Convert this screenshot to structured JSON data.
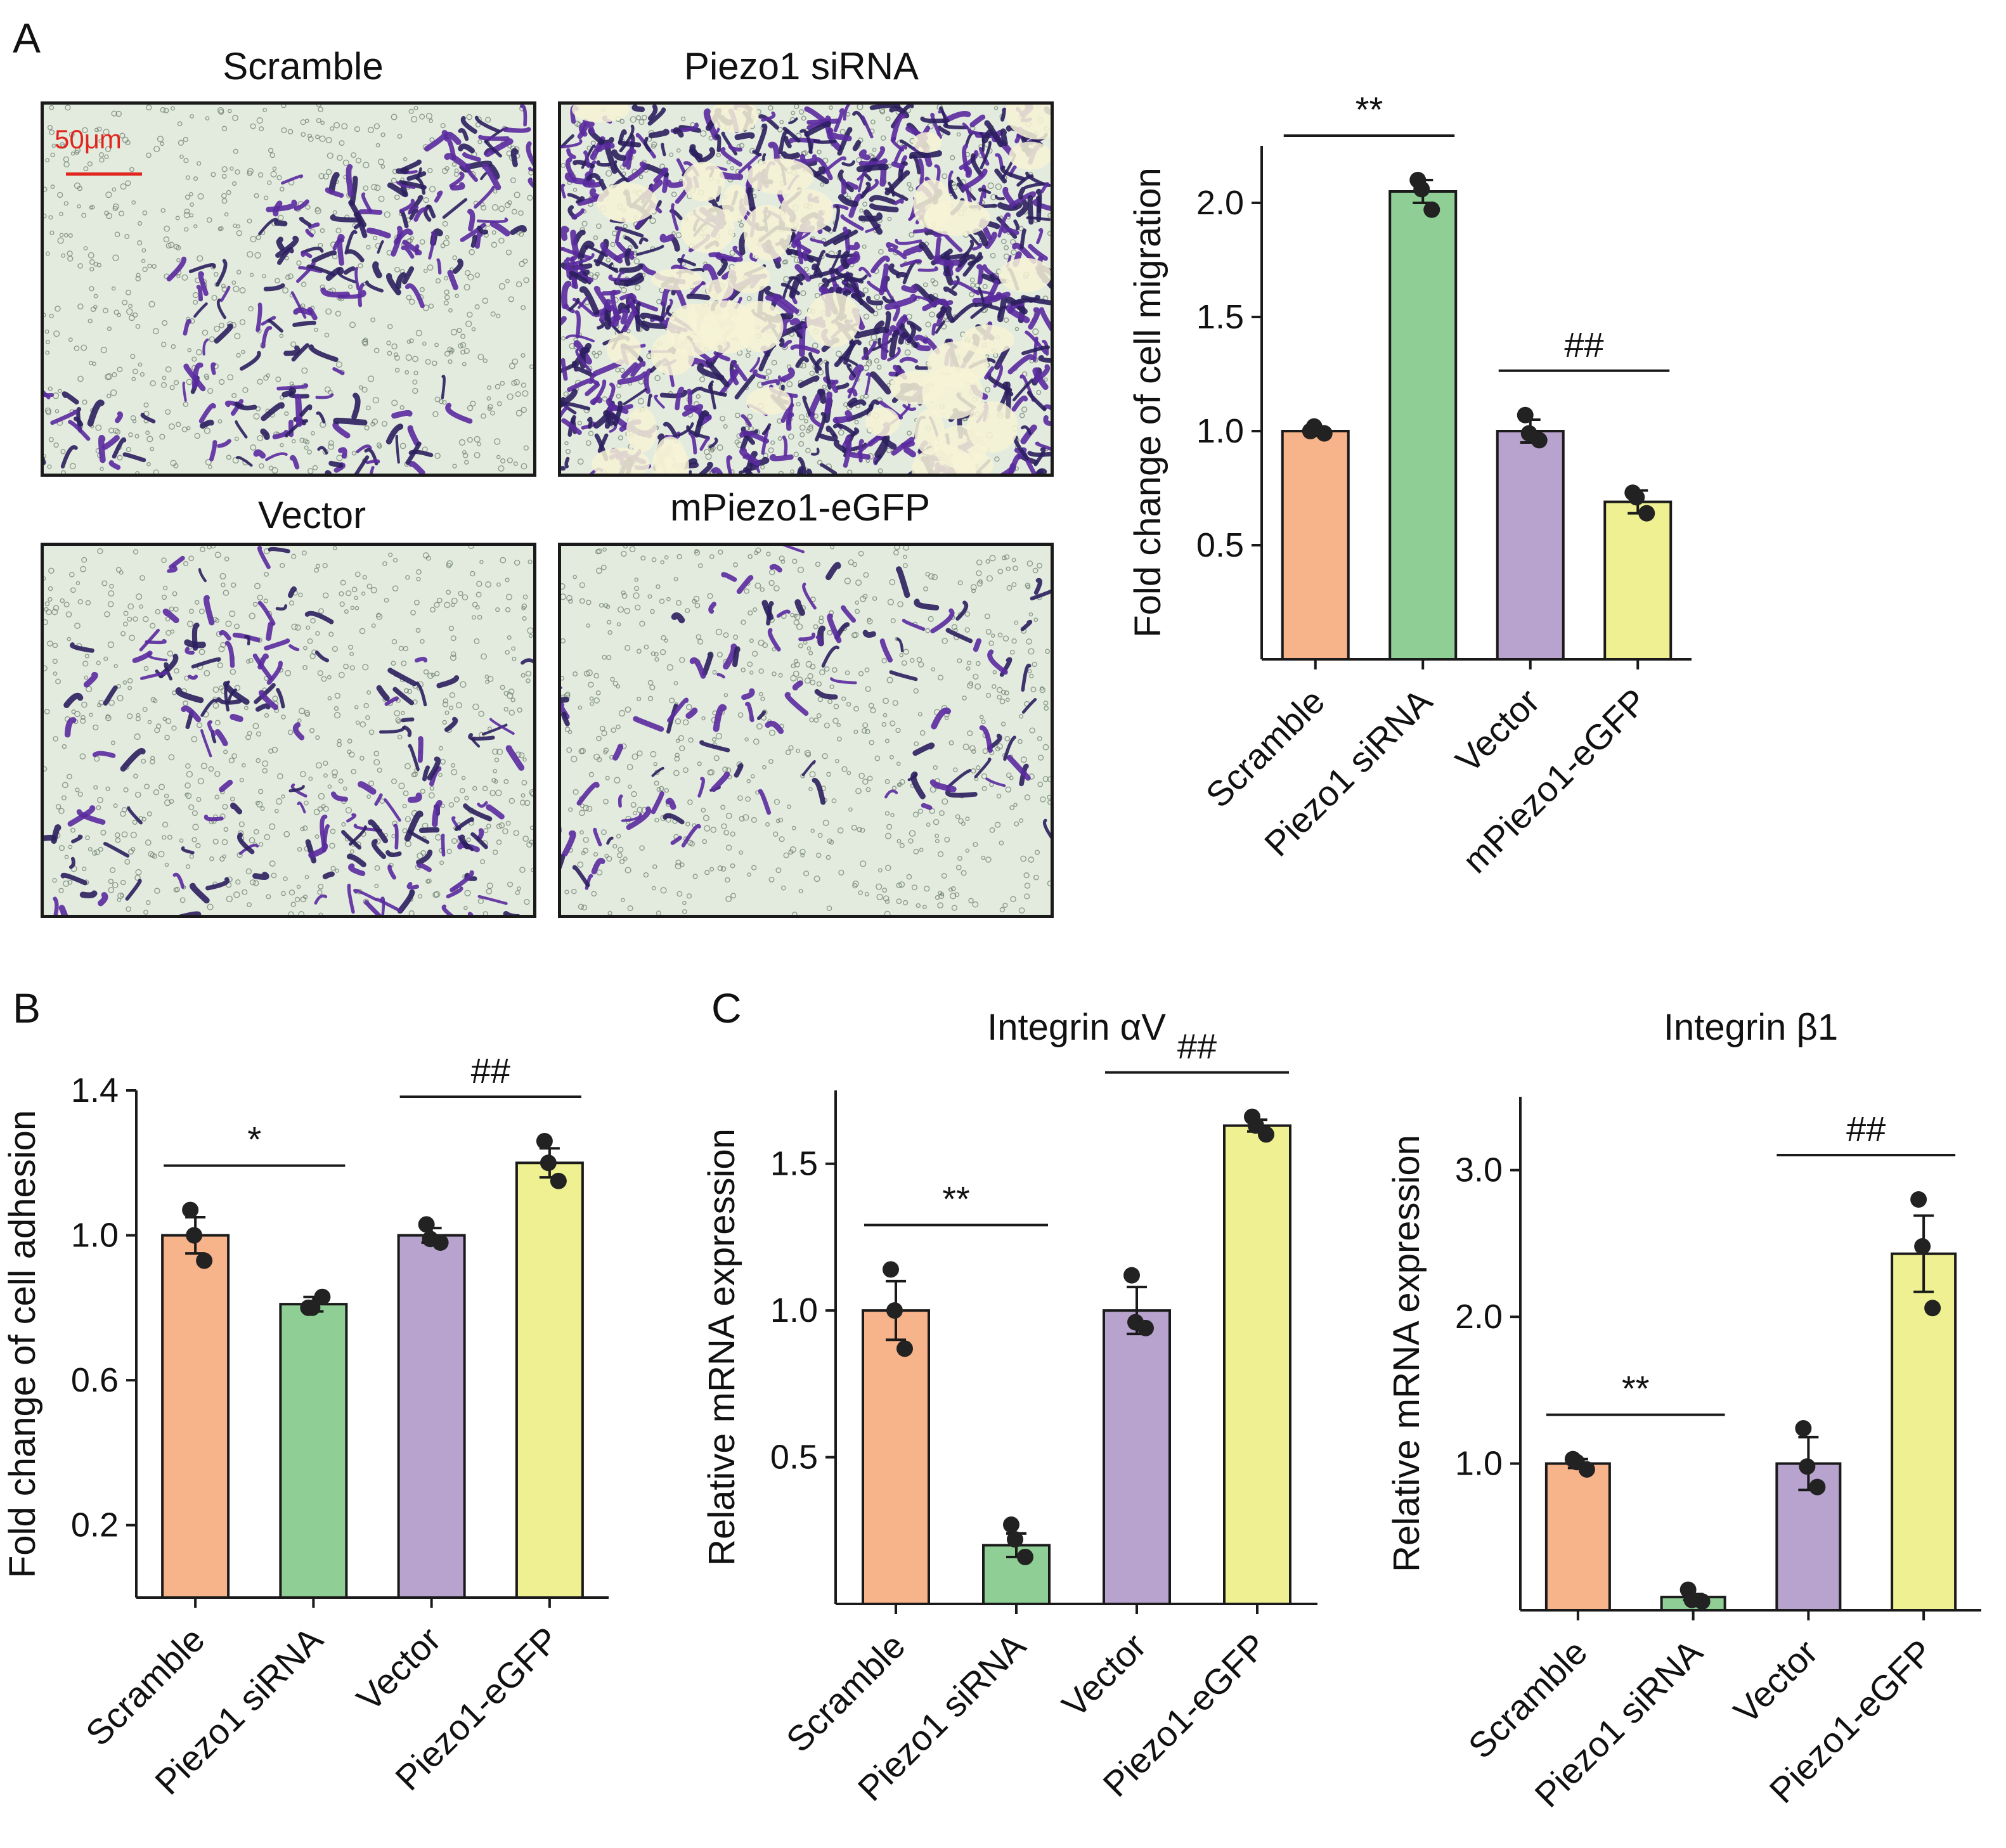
{
  "panels": {
    "a": {
      "letter": "A"
    },
    "b": {
      "letter": "B"
    },
    "c": {
      "letter": "C"
    }
  },
  "micrographs": [
    {
      "title": "Scramble",
      "density": "medium"
    },
    {
      "title": "Piezo1 siRNA",
      "density": "high"
    },
    {
      "title": "Vector",
      "density": "medium-low"
    },
    {
      "title": "mPiezo1-eGFP",
      "density": "low"
    }
  ],
  "scale_bar_label": "50μm",
  "colors": {
    "scramble": "#f7b38a",
    "sirna": "#8fcf95",
    "vector": "#b7a3cd",
    "overexpression": "#eff092",
    "stain": "#5a2a9e",
    "scale": "#e0261f",
    "axis": "#1a1a1a"
  },
  "chart_data": [
    {
      "id": "migration",
      "type": "bar",
      "title": "",
      "xlabel": "",
      "ylabel": "Fold change of cell migration",
      "ylim": [
        0,
        2.25
      ],
      "yticks": [
        0.5,
        1.0,
        1.5,
        2.0
      ],
      "categories": [
        "Scramble",
        "Piezo1 siRNA",
        "Vector",
        "mPiezo1-eGFP"
      ],
      "values": [
        1.0,
        2.05,
        1.0,
        0.69
      ],
      "errors": [
        0.02,
        0.05,
        0.05,
        0.05
      ],
      "points": [
        [
          1.0,
          0.99,
          1.02
        ],
        [
          2.1,
          1.97,
          2.06
        ],
        [
          1.07,
          0.96,
          0.99
        ],
        [
          0.73,
          0.64,
          0.71
        ]
      ],
      "significance": [
        {
          "from": 0,
          "to": 1,
          "label": "**"
        },
        {
          "from": 2,
          "to": 3,
          "label": "##"
        }
      ]
    },
    {
      "id": "adhesion",
      "type": "bar",
      "title": "",
      "xlabel": "",
      "ylabel": "Fold change of cell adhesion",
      "ylim": [
        0,
        1.4
      ],
      "yticks": [
        0.2,
        0.6,
        1.0,
        1.4
      ],
      "categories": [
        "Scramble",
        "Piezo1 siRNA",
        "Vector",
        "Piezo1-eGFP"
      ],
      "values": [
        1.0,
        0.81,
        1.0,
        1.2
      ],
      "errors": [
        0.05,
        0.02,
        0.02,
        0.04
      ],
      "points": [
        [
          1.07,
          0.93,
          1.0
        ],
        [
          0.8,
          0.83,
          0.8
        ],
        [
          1.03,
          0.98,
          0.99
        ],
        [
          1.26,
          1.15,
          1.2
        ]
      ],
      "significance": [
        {
          "from": 0,
          "to": 1,
          "label": "*"
        },
        {
          "from": 2,
          "to": 3,
          "label": "##"
        }
      ]
    },
    {
      "id": "integrin-av",
      "type": "bar",
      "title": "Integrin αV",
      "xlabel": "",
      "ylabel": "Relative mRNA expression",
      "ylim": [
        0,
        1.75
      ],
      "yticks": [
        0.5,
        1.0,
        1.5
      ],
      "categories": [
        "Scramble",
        "Piezo1 siRNA",
        "Vector",
        "Piezo1-eGFP"
      ],
      "values": [
        1.0,
        0.2,
        1.0,
        1.63
      ],
      "errors": [
        0.1,
        0.04,
        0.08,
        0.02
      ],
      "points": [
        [
          1.14,
          0.87,
          1.0
        ],
        [
          0.27,
          0.16,
          0.22
        ],
        [
          1.12,
          0.94,
          0.96
        ],
        [
          1.66,
          1.6,
          1.63
        ]
      ],
      "significance": [
        {
          "from": 0,
          "to": 1,
          "label": "**"
        },
        {
          "from": 2,
          "to": 3,
          "label": "##"
        }
      ]
    },
    {
      "id": "integrin-b1",
      "type": "bar",
      "title": "Integrin β1",
      "xlabel": "",
      "ylabel": "Relative  mRNA expression",
      "ylim": [
        0,
        3.5
      ],
      "yticks": [
        1.0,
        2.0,
        3.0
      ],
      "categories": [
        "Scramble",
        "Piezo1 siRNA",
        "Vector",
        "Piezo1-eGFP"
      ],
      "values": [
        1.0,
        0.09,
        1.0,
        2.43
      ],
      "errors": [
        0.03,
        0.02,
        0.18,
        0.26
      ],
      "points": [
        [
          1.03,
          0.96,
          1.01
        ],
        [
          0.14,
          0.06,
          0.07
        ],
        [
          1.24,
          0.84,
          0.98
        ],
        [
          2.8,
          2.06,
          2.48
        ]
      ],
      "significance": [
        {
          "from": 0,
          "to": 1,
          "label": "**"
        },
        {
          "from": 2,
          "to": 3,
          "label": "##"
        }
      ]
    }
  ]
}
